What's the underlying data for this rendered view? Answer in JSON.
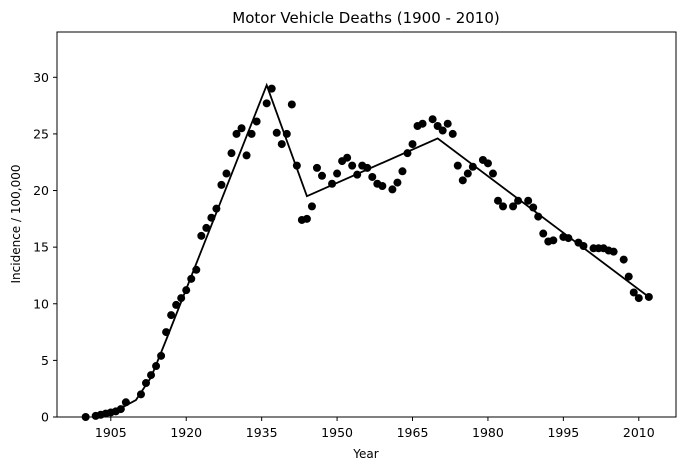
{
  "chart_data": {
    "type": "scatter",
    "title": "Motor Vehicle Deaths (1900 - 2010)",
    "x_label": "Year",
    "y_label": "Incidence / 100,000",
    "xlim": [
      1894.3,
      2017.4
    ],
    "ylim": [
      0,
      34
    ],
    "xticks": [
      1905,
      1920,
      1935,
      1950,
      1965,
      1980,
      1995,
      2010
    ],
    "yticks": [
      0,
      5,
      10,
      15,
      20,
      25,
      30
    ],
    "series": [
      {
        "type": "scatter",
        "color": "#000000",
        "x": [
          1900,
          1902,
          1903,
          1904,
          1905,
          1906,
          1907,
          1908,
          1911,
          1912,
          1913,
          1914,
          1915,
          1916,
          1917,
          1918,
          1919,
          1920,
          1921,
          1922,
          1923,
          1924,
          1925,
          1926,
          1927,
          1928,
          1929,
          1930,
          1931,
          1932,
          1933,
          1934,
          1936,
          1937,
          1938,
          1939,
          1940,
          1941,
          1942,
          1943,
          1944,
          1945,
          1946,
          1947,
          1949,
          1950,
          1951,
          1952,
          1953,
          1954,
          1955,
          1956,
          1957,
          1958,
          1959,
          1961,
          1962,
          1963,
          1964,
          1965,
          1966,
          1967,
          1969,
          1970,
          1971,
          1972,
          1973,
          1974,
          1975,
          1976,
          1977,
          1979,
          1980,
          1981,
          1982,
          1983,
          1985,
          1986,
          1988,
          1989,
          1990,
          1991,
          1992,
          1993,
          1995,
          1996,
          1998,
          1999,
          2001,
          2002,
          2003,
          2004,
          2005,
          2007,
          2008,
          2009,
          2010,
          2012
        ],
        "values": [
          0,
          0.1,
          0.2,
          0.3,
          0.4,
          0.5,
          0.7,
          1.3,
          2.0,
          3.0,
          3.7,
          4.5,
          5.4,
          7.5,
          9.0,
          9.9,
          10.5,
          11.2,
          12.2,
          13.0,
          16.0,
          16.7,
          17.6,
          18.4,
          20.5,
          21.5,
          23.3,
          25.0,
          25.5,
          23.1,
          25.0,
          26.1,
          27.7,
          29.0,
          25.1,
          24.1,
          25.0,
          27.6,
          22.2,
          17.4,
          17.5,
          18.6,
          22.0,
          21.3,
          20.6,
          21.5,
          22.6,
          22.9,
          22.2,
          21.4,
          22.2,
          22.0,
          21.2,
          20.6,
          20.4,
          20.1,
          20.7,
          21.7,
          23.3,
          24.1,
          25.7,
          25.9,
          26.3,
          25.7,
          25.3,
          25.9,
          25.0,
          22.2,
          20.9,
          21.5,
          22.1,
          22.7,
          22.4,
          21.5,
          19.1,
          18.6,
          18.6,
          19.1,
          19.1,
          18.5,
          17.7,
          16.2,
          15.5,
          15.6,
          15.9,
          15.8,
          15.4,
          15.1,
          14.9,
          14.9,
          14.9,
          14.7,
          14.6,
          13.9,
          12.4,
          11.0,
          10.5,
          10.6
        ]
      },
      {
        "type": "line",
        "color": "#000000",
        "x": [
          1905,
          1910,
          1913,
          1916,
          1936,
          1944,
          1970,
          2012
        ],
        "values": [
          0.3,
          1.5,
          3.5,
          6.8,
          29.3,
          19.5,
          24.6,
          10.6
        ]
      }
    ]
  }
}
